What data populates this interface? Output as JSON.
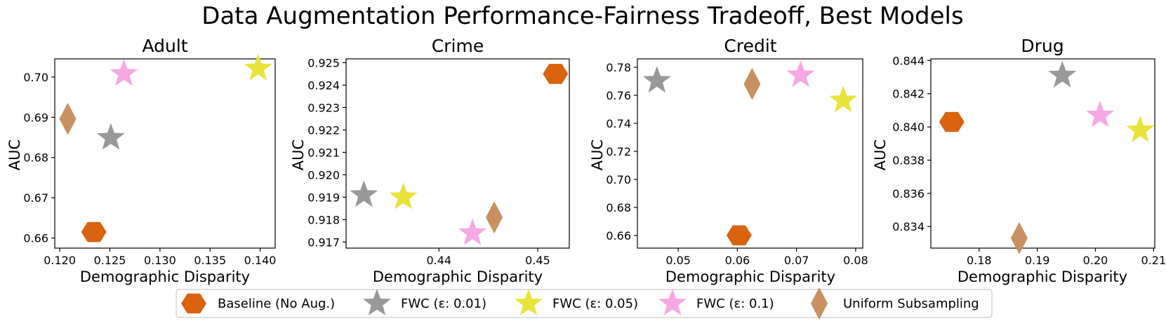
{
  "title": "Data Augmentation Performance-Fairness Tradeoff, Best Models",
  "colors": {
    "baseline": "#d9630f",
    "fwc_001": "#999999",
    "fwc_005": "#e8e33a",
    "fwc_01": "#f7a8e4",
    "uniform": "#c9915f"
  },
  "legend": {
    "position": "bottom-center",
    "items": [
      {
        "key": "baseline",
        "label": "Baseline (No Aug.)",
        "marker": "hexagon"
      },
      {
        "key": "fwc_001",
        "label": "FWC (ε: 0.01)",
        "marker": "star"
      },
      {
        "key": "fwc_005",
        "label": "FWC (ε: 0.05)",
        "marker": "star"
      },
      {
        "key": "fwc_01",
        "label": "FWC (ε: 0.1)",
        "marker": "star"
      },
      {
        "key": "uniform",
        "label": "Uniform Subsampling",
        "marker": "diamond"
      }
    ]
  },
  "chart_data": [
    {
      "type": "scatter",
      "title": "Adult",
      "xlabel": "Demographic Disparity",
      "ylabel": "AUC",
      "xlim": [
        0.1195,
        0.1415
      ],
      "ylim": [
        0.6575,
        0.7045
      ],
      "xticks": [
        0.12,
        0.125,
        0.13,
        0.135,
        0.14
      ],
      "xtick_labels": [
        "0.120",
        "0.125",
        "0.130",
        "0.135",
        "0.140"
      ],
      "yticks": [
        0.66,
        0.67,
        0.68,
        0.69,
        0.7
      ],
      "ytick_labels": [
        "0.66",
        "0.67",
        "0.68",
        "0.69",
        "0.70"
      ],
      "grid": false,
      "points": [
        {
          "key": "baseline",
          "x": 0.1234,
          "y": 0.6615
        },
        {
          "key": "fwc_001",
          "x": 0.1251,
          "y": 0.6849
        },
        {
          "key": "fwc_005",
          "x": 0.1398,
          "y": 0.7021
        },
        {
          "key": "fwc_01",
          "x": 0.1264,
          "y": 0.7008
        },
        {
          "key": "uniform",
          "x": 0.1208,
          "y": 0.6896
        }
      ]
    },
    {
      "type": "scatter",
      "title": "Crime",
      "xlabel": "Demographic Disparity",
      "ylabel": "AUC",
      "xlim": [
        0.4306,
        0.4532
      ],
      "ylim": [
        0.91673,
        0.92517
      ],
      "xticks": [
        0.44,
        0.45
      ],
      "xtick_labels": [
        "0.44",
        "0.45"
      ],
      "yticks": [
        0.917,
        0.918,
        0.919,
        0.92,
        0.921,
        0.922,
        0.923,
        0.924,
        0.925
      ],
      "ytick_labels": [
        "0.917",
        "0.918",
        "0.919",
        "0.920",
        "0.921",
        "0.922",
        "0.923",
        "0.924",
        "0.925"
      ],
      "grid": false,
      "points": [
        {
          "key": "baseline",
          "x": 0.4518,
          "y": 0.9245
        },
        {
          "key": "fwc_001",
          "x": 0.4324,
          "y": 0.9191
        },
        {
          "key": "fwc_005",
          "x": 0.4364,
          "y": 0.919
        },
        {
          "key": "fwc_01",
          "x": 0.4434,
          "y": 0.9174
        },
        {
          "key": "uniform",
          "x": 0.4456,
          "y": 0.9181
        }
      ]
    },
    {
      "type": "scatter",
      "title": "Credit",
      "xlabel": "Demographic Disparity",
      "ylabel": "AUC",
      "xlim": [
        0.0431,
        0.0812
      ],
      "ylim": [
        0.651,
        0.786
      ],
      "xticks": [
        0.05,
        0.06,
        0.07,
        0.08
      ],
      "xtick_labels": [
        "0.05",
        "0.06",
        "0.07",
        "0.08"
      ],
      "yticks": [
        0.66,
        0.68,
        0.7,
        0.72,
        0.74,
        0.76,
        0.78
      ],
      "ytick_labels": [
        "0.66",
        "0.68",
        "0.70",
        "0.72",
        "0.74",
        "0.76",
        "0.78"
      ],
      "grid": false,
      "points": [
        {
          "key": "baseline",
          "x": 0.0603,
          "y": 0.6601
        },
        {
          "key": "fwc_001",
          "x": 0.0464,
          "y": 0.7704
        },
        {
          "key": "fwc_005",
          "x": 0.0779,
          "y": 0.7564
        },
        {
          "key": "fwc_01",
          "x": 0.0707,
          "y": 0.7744
        },
        {
          "key": "uniform",
          "x": 0.0625,
          "y": 0.7681
        }
      ]
    },
    {
      "type": "scatter",
      "title": "Drug",
      "xlabel": "Demographic Disparity",
      "ylabel": "AUC",
      "xlim": [
        0.1717,
        0.2102
      ],
      "ylim": [
        0.8327,
        0.8441
      ],
      "xticks": [
        0.18,
        0.19,
        0.2,
        0.21
      ],
      "xtick_labels": [
        "0.18",
        "0.19",
        "0.20",
        "0.21"
      ],
      "yticks": [
        0.834,
        0.836,
        0.838,
        0.84,
        0.842,
        0.844
      ],
      "ytick_labels": [
        "0.834",
        "0.836",
        "0.838",
        "0.840",
        "0.842",
        "0.844"
      ],
      "grid": false,
      "points": [
        {
          "key": "baseline",
          "x": 0.1753,
          "y": 0.8403
        },
        {
          "key": "fwc_001",
          "x": 0.1943,
          "y": 0.8431
        },
        {
          "key": "fwc_005",
          "x": 0.2077,
          "y": 0.8398
        },
        {
          "key": "fwc_01",
          "x": 0.2008,
          "y": 0.8407
        },
        {
          "key": "uniform",
          "x": 0.1869,
          "y": 0.8333
        }
      ]
    }
  ]
}
